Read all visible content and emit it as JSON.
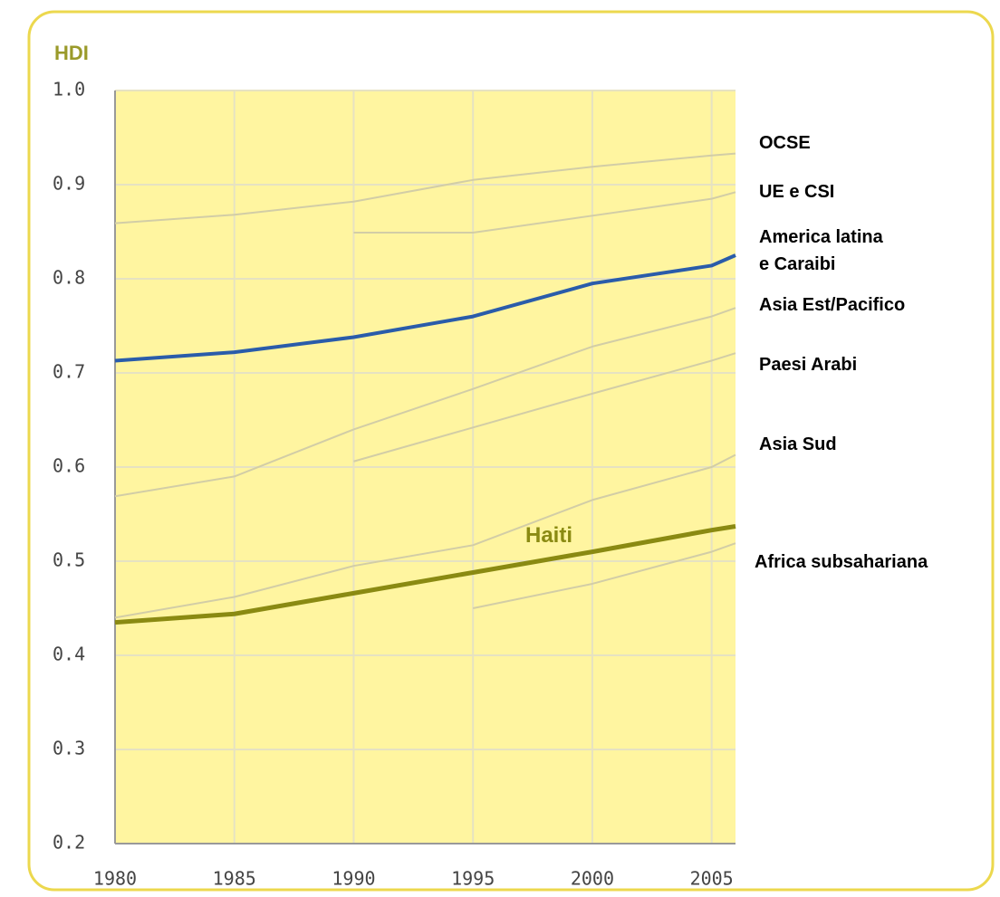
{
  "chart_data": {
    "type": "line",
    "ylabel": "HDI",
    "x": [
      1980,
      1985,
      1990,
      1995,
      2000,
      2005,
      2006
    ],
    "xlim": [
      1980,
      2006
    ],
    "xticks": [
      1980,
      1985,
      1990,
      1995,
      2000,
      2005
    ],
    "ylim": [
      0.2,
      1.0
    ],
    "yticks": [
      0.2,
      0.3,
      0.4,
      0.5,
      0.6,
      0.7,
      0.8,
      0.9,
      {
        "value": 1.0,
        "label": "1.0"
      }
    ],
    "grid": true,
    "series": [
      {
        "name": "OCSE",
        "color": "#d2cda6",
        "linewidth": 2,
        "values": [
          0.859,
          0.868,
          0.882,
          0.905,
          0.919,
          0.931,
          0.933
        ]
      },
      {
        "name": "UE e CSI",
        "color": "#d2cda6",
        "linewidth": 2,
        "values": [
          null,
          null,
          0.849,
          0.849,
          0.867,
          0.885,
          0.892
        ]
      },
      {
        "name": "America latina\ne Caraibi",
        "color": "#2a5caa",
        "linewidth": 4,
        "values": [
          0.713,
          0.722,
          0.738,
          0.76,
          0.795,
          0.814,
          0.825
        ]
      },
      {
        "name": "Asia Est/Pacifico",
        "color": "#d2cda6",
        "linewidth": 2,
        "values": [
          0.569,
          0.59,
          0.64,
          0.683,
          0.728,
          0.76,
          0.769
        ]
      },
      {
        "name": "Paesi Arabi",
        "color": "#d2cda6",
        "linewidth": 2,
        "values": [
          null,
          null,
          0.606,
          0.642,
          0.678,
          0.713,
          0.721
        ]
      },
      {
        "name": "Asia Sud",
        "color": "#d2cda6",
        "linewidth": 2,
        "values": [
          0.44,
          0.462,
          0.495,
          0.517,
          0.565,
          0.6,
          0.613
        ]
      },
      {
        "name": "Africa subsahariana",
        "color": "#d2cda6",
        "linewidth": 2,
        "values": [
          null,
          null,
          null,
          0.45,
          0.476,
          0.51,
          0.519
        ]
      },
      {
        "name": "Haiti",
        "color": "#8a8a12",
        "linewidth": 5,
        "values": [
          0.435,
          0.444,
          0.466,
          0.488,
          0.51,
          0.533,
          0.537
        ]
      }
    ]
  }
}
